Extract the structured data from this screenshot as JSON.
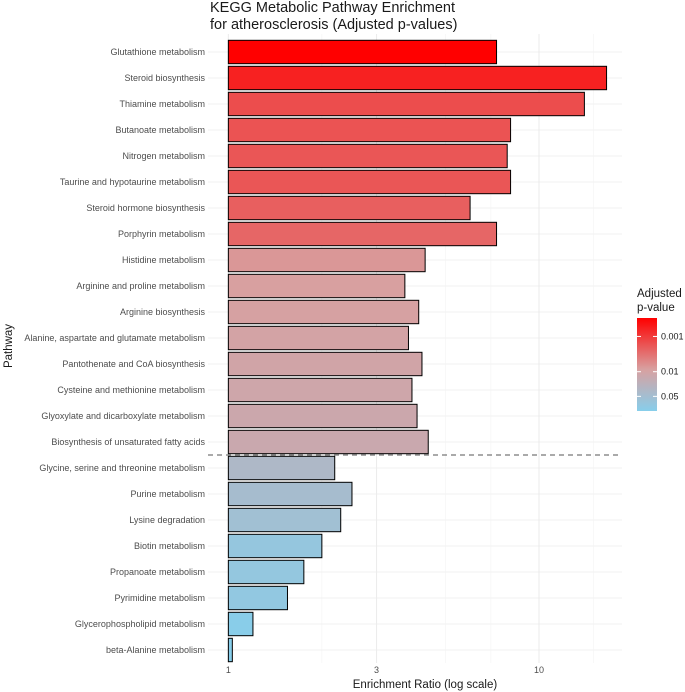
{
  "chart_data": {
    "type": "bar",
    "orientation": "horizontal",
    "title_lines": [
      "KEGG Metabolic Pathway Enrichment",
      "for atherosclerosis (Adjusted p-values)"
    ],
    "xlabel": "Enrichment Ratio (log scale)",
    "ylabel": "Pathway",
    "x_scale": "log10",
    "xlim": [
      0.86,
      18.5
    ],
    "x_ticks": [
      {
        "value": 1,
        "label": "1"
      },
      {
        "value": 3,
        "label": "3"
      },
      {
        "value": 10,
        "label": "10"
      }
    ],
    "grid": true,
    "significance_threshold_line": {
      "after_category_index": 15,
      "style": "dashed"
    },
    "categories": [
      "Glutathione metabolism",
      "Steroid biosynthesis",
      "Thiamine metabolism",
      "Butanoate metabolism",
      "Nitrogen metabolism",
      "Taurine and hypotaurine metabolism",
      "Steroid hormone biosynthesis",
      "Porphyrin metabolism",
      "Histidine metabolism",
      "Arginine and proline metabolism",
      "Arginine biosynthesis",
      "Alanine, aspartate and glutamate metabolism",
      "Pantothenate and CoA biosynthesis",
      "Cysteine and methionine metabolism",
      "Glyoxylate and dicarboxylate metabolism",
      "Biosynthesis of unsaturated fatty acids",
      "Glycine, serine and threonine metabolism",
      "Purine metabolism",
      "Lysine degradation",
      "Biotin metabolism",
      "Propanoate metabolism",
      "Pyrimidine metabolism",
      "Glycerophospholipid metabolism",
      "beta-Alanine metabolism"
    ],
    "values": [
      7.3,
      16.5,
      14.0,
      8.1,
      7.9,
      8.1,
      6.0,
      7.3,
      4.3,
      3.7,
      4.1,
      3.8,
      4.2,
      3.9,
      4.05,
      4.4,
      2.2,
      2.5,
      2.3,
      2.0,
      1.75,
      1.55,
      1.2,
      1.03
    ],
    "p_adj": [
      0.0003,
      0.0006,
      0.0015,
      0.0017,
      0.0018,
      0.0018,
      0.0022,
      0.0025,
      0.007,
      0.0085,
      0.009,
      0.01,
      0.011,
      0.012,
      0.013,
      0.014,
      0.035,
      0.045,
      0.055,
      0.08,
      0.085,
      0.09,
      0.12,
      0.13
    ],
    "legend": {
      "title_lines": [
        "Adjusted",
        "p-value"
      ],
      "ticks": [
        {
          "value": 0.001,
          "label": "0.001"
        },
        {
          "value": 0.01,
          "label": "0.01"
        },
        {
          "value": 0.05,
          "label": "0.05"
        }
      ],
      "p_range": [
        0.0003,
        0.13
      ],
      "placement": "right"
    }
  },
  "colors": {
    "low_p": "#ff0000",
    "high_p": "#87ceeb",
    "mid_p": "#d8a0a0",
    "bar_outline": "#000000",
    "grid": "#ebebeb",
    "threshold_line": "#555555"
  }
}
